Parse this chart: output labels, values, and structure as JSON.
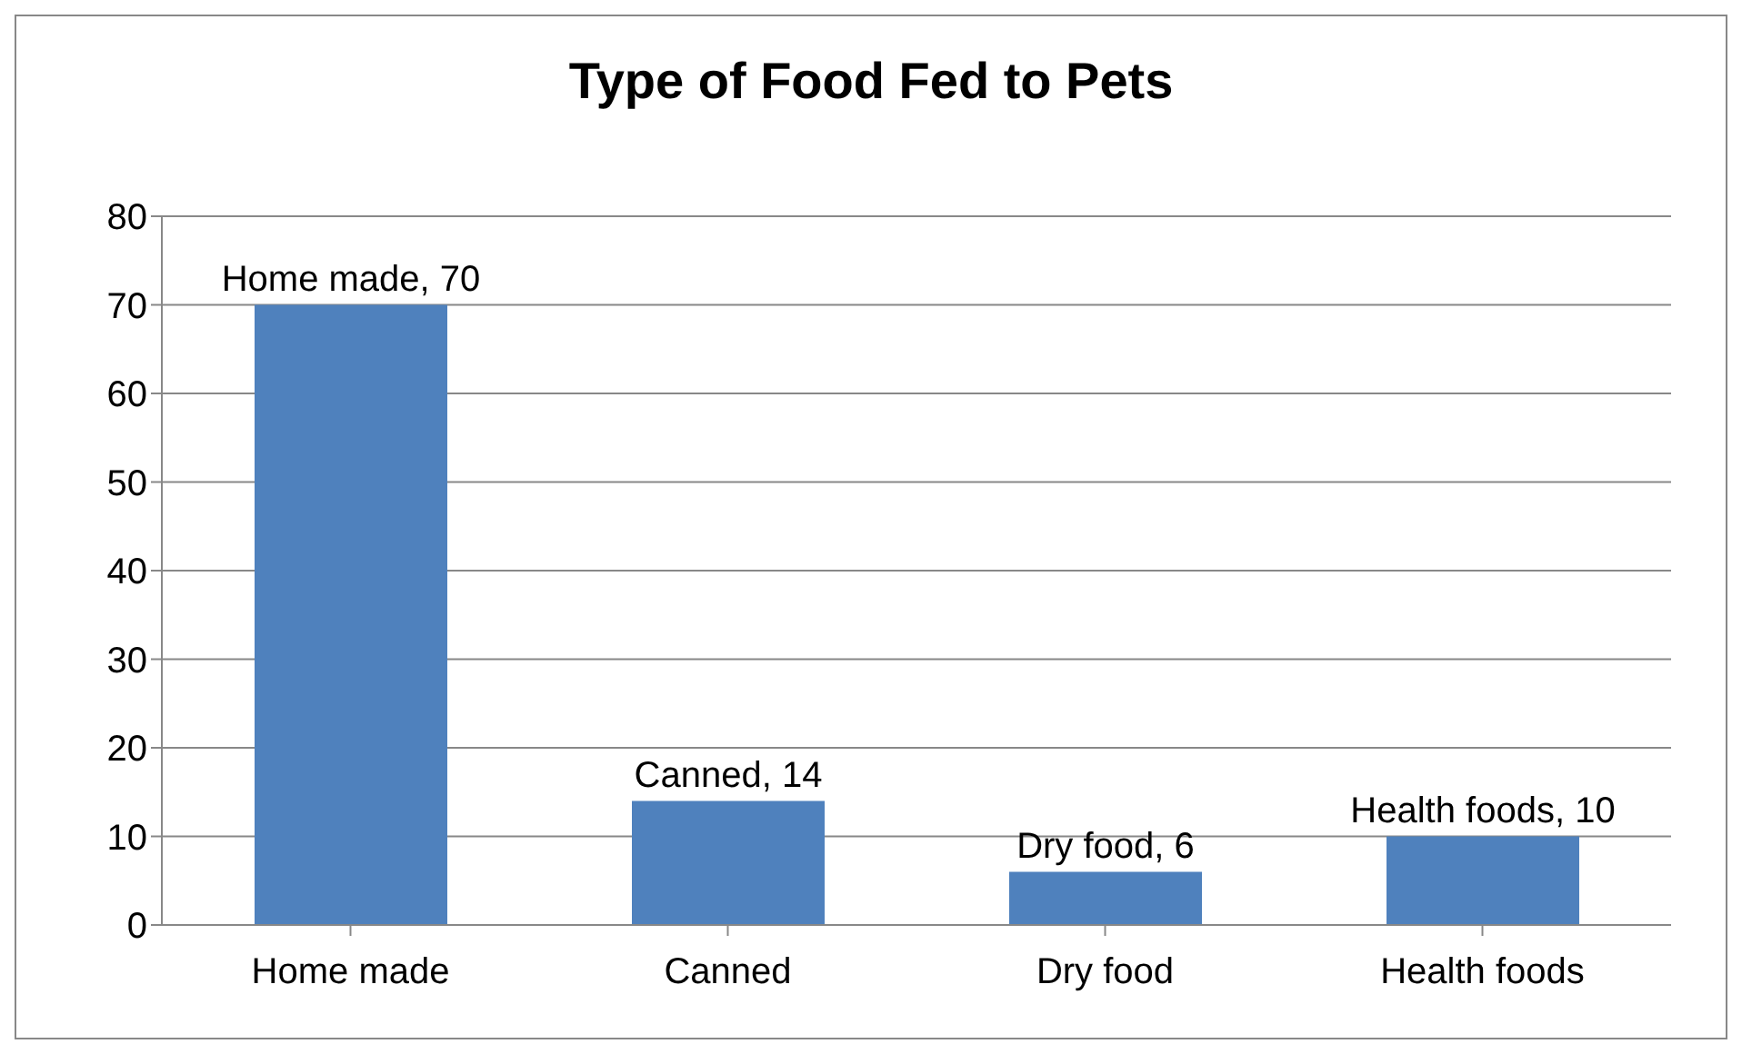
{
  "chart_data": {
    "type": "bar",
    "title": "Type of Food Fed to Pets",
    "categories": [
      "Home made",
      "Canned",
      "Dry food",
      "Health foods"
    ],
    "values": [
      70,
      14,
      6,
      10
    ],
    "color": "#4f81bd",
    "value_labels": [
      "Home made, 70",
      "Canned, 14",
      "Dry food, 6",
      "Health foods, 10"
    ],
    "ylim": [
      0,
      80
    ],
    "yticks": [
      0,
      10,
      20,
      30,
      40,
      50,
      60,
      70,
      80
    ],
    "grid": "y"
  }
}
